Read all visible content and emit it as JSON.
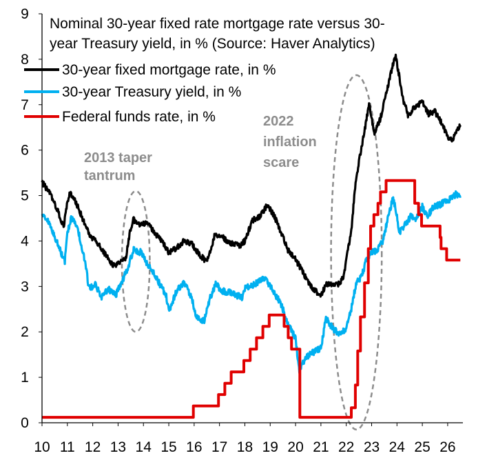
{
  "chart_data": {
    "type": "line",
    "title_lines": [
      "Nominal 30-year fixed rate mortgage rate versus 30-",
      "year Treasury yield, in % (Source: Haver Analytics)"
    ],
    "xlabel": "",
    "ylabel": "",
    "xlim": [
      10,
      26.6
    ],
    "ylim": [
      0,
      9
    ],
    "x_ticks": [
      "10",
      "11",
      "12",
      "13",
      "14",
      "15",
      "16",
      "17",
      "18",
      "19",
      "20",
      "21",
      "22",
      "23",
      "24",
      "25",
      "26"
    ],
    "y_ticks": [
      "0",
      "1",
      "2",
      "3",
      "4",
      "5",
      "6",
      "7",
      "8",
      "9"
    ],
    "grid": false,
    "legend_position": "top-left",
    "series": [
      {
        "name": "30-year fixed mortgage rate, in %",
        "color": "#000000",
        "points": [
          [
            10.0,
            5.3
          ],
          [
            10.3,
            5.05
          ],
          [
            10.6,
            4.7
          ],
          [
            10.85,
            4.3
          ],
          [
            11.0,
            4.85
          ],
          [
            11.1,
            5.05
          ],
          [
            11.3,
            4.9
          ],
          [
            11.6,
            4.5
          ],
          [
            11.9,
            4.1
          ],
          [
            12.2,
            3.95
          ],
          [
            12.5,
            3.7
          ],
          [
            12.8,
            3.45
          ],
          [
            13.0,
            3.5
          ],
          [
            13.3,
            3.6
          ],
          [
            13.45,
            4.15
          ],
          [
            13.6,
            4.5
          ],
          [
            13.75,
            4.35
          ],
          [
            14.0,
            4.4
          ],
          [
            14.2,
            4.35
          ],
          [
            14.5,
            4.15
          ],
          [
            14.9,
            3.85
          ],
          [
            15.0,
            3.75
          ],
          [
            15.3,
            3.85
          ],
          [
            15.6,
            4.0
          ],
          [
            15.9,
            3.95
          ],
          [
            16.2,
            3.7
          ],
          [
            16.5,
            3.55
          ],
          [
            16.8,
            4.1
          ],
          [
            17.0,
            4.15
          ],
          [
            17.4,
            3.95
          ],
          [
            17.8,
            3.9
          ],
          [
            18.0,
            4.0
          ],
          [
            18.3,
            4.45
          ],
          [
            18.6,
            4.55
          ],
          [
            18.9,
            4.8
          ],
          [
            19.2,
            4.5
          ],
          [
            19.5,
            4.1
          ],
          [
            19.7,
            3.8
          ],
          [
            20.0,
            3.6
          ],
          [
            20.3,
            3.3
          ],
          [
            20.6,
            3.0
          ],
          [
            20.9,
            2.85
          ],
          [
            21.0,
            2.8
          ],
          [
            21.2,
            3.05
          ],
          [
            21.4,
            3.05
          ],
          [
            21.7,
            3.05
          ],
          [
            21.9,
            3.2
          ],
          [
            22.0,
            3.6
          ],
          [
            22.2,
            4.2
          ],
          [
            22.35,
            5.2
          ],
          [
            22.55,
            5.9
          ],
          [
            22.75,
            6.5
          ],
          [
            22.9,
            7.05
          ],
          [
            23.1,
            6.35
          ],
          [
            23.35,
            6.7
          ],
          [
            23.6,
            7.3
          ],
          [
            23.85,
            7.9
          ],
          [
            23.95,
            8.05
          ],
          [
            24.1,
            7.6
          ],
          [
            24.25,
            7.1
          ],
          [
            24.45,
            6.75
          ],
          [
            24.7,
            6.95
          ],
          [
            25.0,
            7.05
          ],
          [
            25.25,
            6.8
          ],
          [
            25.5,
            6.85
          ],
          [
            25.75,
            6.6
          ],
          [
            26.0,
            6.3
          ],
          [
            26.2,
            6.2
          ],
          [
            26.35,
            6.45
          ],
          [
            26.5,
            6.55
          ]
        ]
      },
      {
        "name": "30-year Treasury yield, in %",
        "color": "#00b0f0",
        "points": [
          [
            10.0,
            4.6
          ],
          [
            10.3,
            4.4
          ],
          [
            10.6,
            3.95
          ],
          [
            10.9,
            3.55
          ],
          [
            11.0,
            4.15
          ],
          [
            11.15,
            4.5
          ],
          [
            11.4,
            4.3
          ],
          [
            11.7,
            3.55
          ],
          [
            11.85,
            2.95
          ],
          [
            12.1,
            3.05
          ],
          [
            12.35,
            2.75
          ],
          [
            12.6,
            2.95
          ],
          [
            12.9,
            2.8
          ],
          [
            13.1,
            3.05
          ],
          [
            13.35,
            3.35
          ],
          [
            13.6,
            3.8
          ],
          [
            13.9,
            3.75
          ],
          [
            14.2,
            3.45
          ],
          [
            14.5,
            3.2
          ],
          [
            14.9,
            2.8
          ],
          [
            15.0,
            2.45
          ],
          [
            15.3,
            2.9
          ],
          [
            15.6,
            3.1
          ],
          [
            15.9,
            2.75
          ],
          [
            16.1,
            2.3
          ],
          [
            16.4,
            2.25
          ],
          [
            16.6,
            2.7
          ],
          [
            16.85,
            3.05
          ],
          [
            17.1,
            2.9
          ],
          [
            17.5,
            2.85
          ],
          [
            17.9,
            2.75
          ],
          [
            18.0,
            2.95
          ],
          [
            18.4,
            3.05
          ],
          [
            18.8,
            3.2
          ],
          [
            19.1,
            2.9
          ],
          [
            19.4,
            2.65
          ],
          [
            19.7,
            2.2
          ],
          [
            20.0,
            1.85
          ],
          [
            20.15,
            1.15
          ],
          [
            20.4,
            1.45
          ],
          [
            20.7,
            1.55
          ],
          [
            21.0,
            1.65
          ],
          [
            21.2,
            2.3
          ],
          [
            21.5,
            2.05
          ],
          [
            21.8,
            1.95
          ],
          [
            22.0,
            2.1
          ],
          [
            22.2,
            2.5
          ],
          [
            22.4,
            3.1
          ],
          [
            22.6,
            3.2
          ],
          [
            22.8,
            3.6
          ],
          [
            23.0,
            3.75
          ],
          [
            23.2,
            3.8
          ],
          [
            23.45,
            4.0
          ],
          [
            23.6,
            4.4
          ],
          [
            23.85,
            4.95
          ],
          [
            23.95,
            4.7
          ],
          [
            24.1,
            4.2
          ],
          [
            24.3,
            4.35
          ],
          [
            24.55,
            4.55
          ],
          [
            24.75,
            4.5
          ],
          [
            25.0,
            4.75
          ],
          [
            25.2,
            4.55
          ],
          [
            25.45,
            4.75
          ],
          [
            25.7,
            4.8
          ],
          [
            26.0,
            4.9
          ],
          [
            26.2,
            4.95
          ],
          [
            26.35,
            5.05
          ],
          [
            26.5,
            4.95
          ]
        ]
      },
      {
        "name": "Federal funds rate, in %",
        "color": "#e00000",
        "points": [
          [
            10.0,
            0.12
          ],
          [
            15.97,
            0.12
          ],
          [
            15.97,
            0.37
          ],
          [
            16.96,
            0.37
          ],
          [
            16.96,
            0.62
          ],
          [
            17.21,
            0.62
          ],
          [
            17.21,
            0.87
          ],
          [
            17.46,
            0.87
          ],
          [
            17.46,
            1.12
          ],
          [
            17.96,
            1.12
          ],
          [
            17.96,
            1.37
          ],
          [
            18.21,
            1.37
          ],
          [
            18.21,
            1.62
          ],
          [
            18.46,
            1.62
          ],
          [
            18.46,
            1.87
          ],
          [
            18.71,
            1.87
          ],
          [
            18.71,
            2.12
          ],
          [
            18.96,
            2.12
          ],
          [
            18.96,
            2.37
          ],
          [
            19.55,
            2.37
          ],
          [
            19.55,
            2.12
          ],
          [
            19.71,
            2.12
          ],
          [
            19.71,
            1.87
          ],
          [
            19.84,
            1.87
          ],
          [
            19.84,
            1.62
          ],
          [
            20.17,
            1.62
          ],
          [
            20.17,
            0.12
          ],
          [
            22.2,
            0.12
          ],
          [
            22.2,
            0.33
          ],
          [
            22.36,
            0.33
          ],
          [
            22.36,
            0.83
          ],
          [
            22.45,
            0.83
          ],
          [
            22.45,
            1.58
          ],
          [
            22.56,
            1.58
          ],
          [
            22.56,
            2.33
          ],
          [
            22.72,
            2.33
          ],
          [
            22.72,
            3.08
          ],
          [
            22.87,
            3.08
          ],
          [
            22.87,
            3.83
          ],
          [
            22.96,
            3.83
          ],
          [
            22.96,
            4.33
          ],
          [
            23.09,
            4.33
          ],
          [
            23.09,
            4.58
          ],
          [
            23.25,
            4.58
          ],
          [
            23.25,
            4.83
          ],
          [
            23.35,
            4.83
          ],
          [
            23.35,
            5.08
          ],
          [
            23.57,
            5.08
          ],
          [
            23.57,
            5.33
          ],
          [
            24.7,
            5.33
          ],
          [
            24.7,
            4.83
          ],
          [
            24.85,
            4.83
          ],
          [
            24.85,
            4.58
          ],
          [
            24.97,
            4.58
          ],
          [
            24.97,
            4.33
          ],
          [
            25.7,
            4.33
          ],
          [
            25.7,
            4.08
          ],
          [
            25.74,
            4.08
          ],
          [
            25.74,
            3.83
          ],
          [
            25.96,
            3.83
          ],
          [
            25.96,
            3.58
          ],
          [
            26.5,
            3.58
          ]
        ]
      }
    ],
    "annotations": [
      {
        "lines": [
          "2013 taper",
          "tantrum"
        ],
        "ellipse_center": [
          13.7,
          3.55
        ],
        "ellipse_radii": [
          0.55,
          1.55
        ]
      },
      {
        "lines": [
          "2022",
          "inflation",
          "scare"
        ],
        "ellipse_center": [
          22.4,
          3.75
        ],
        "ellipse_radii": [
          1.0,
          3.9
        ]
      }
    ]
  }
}
